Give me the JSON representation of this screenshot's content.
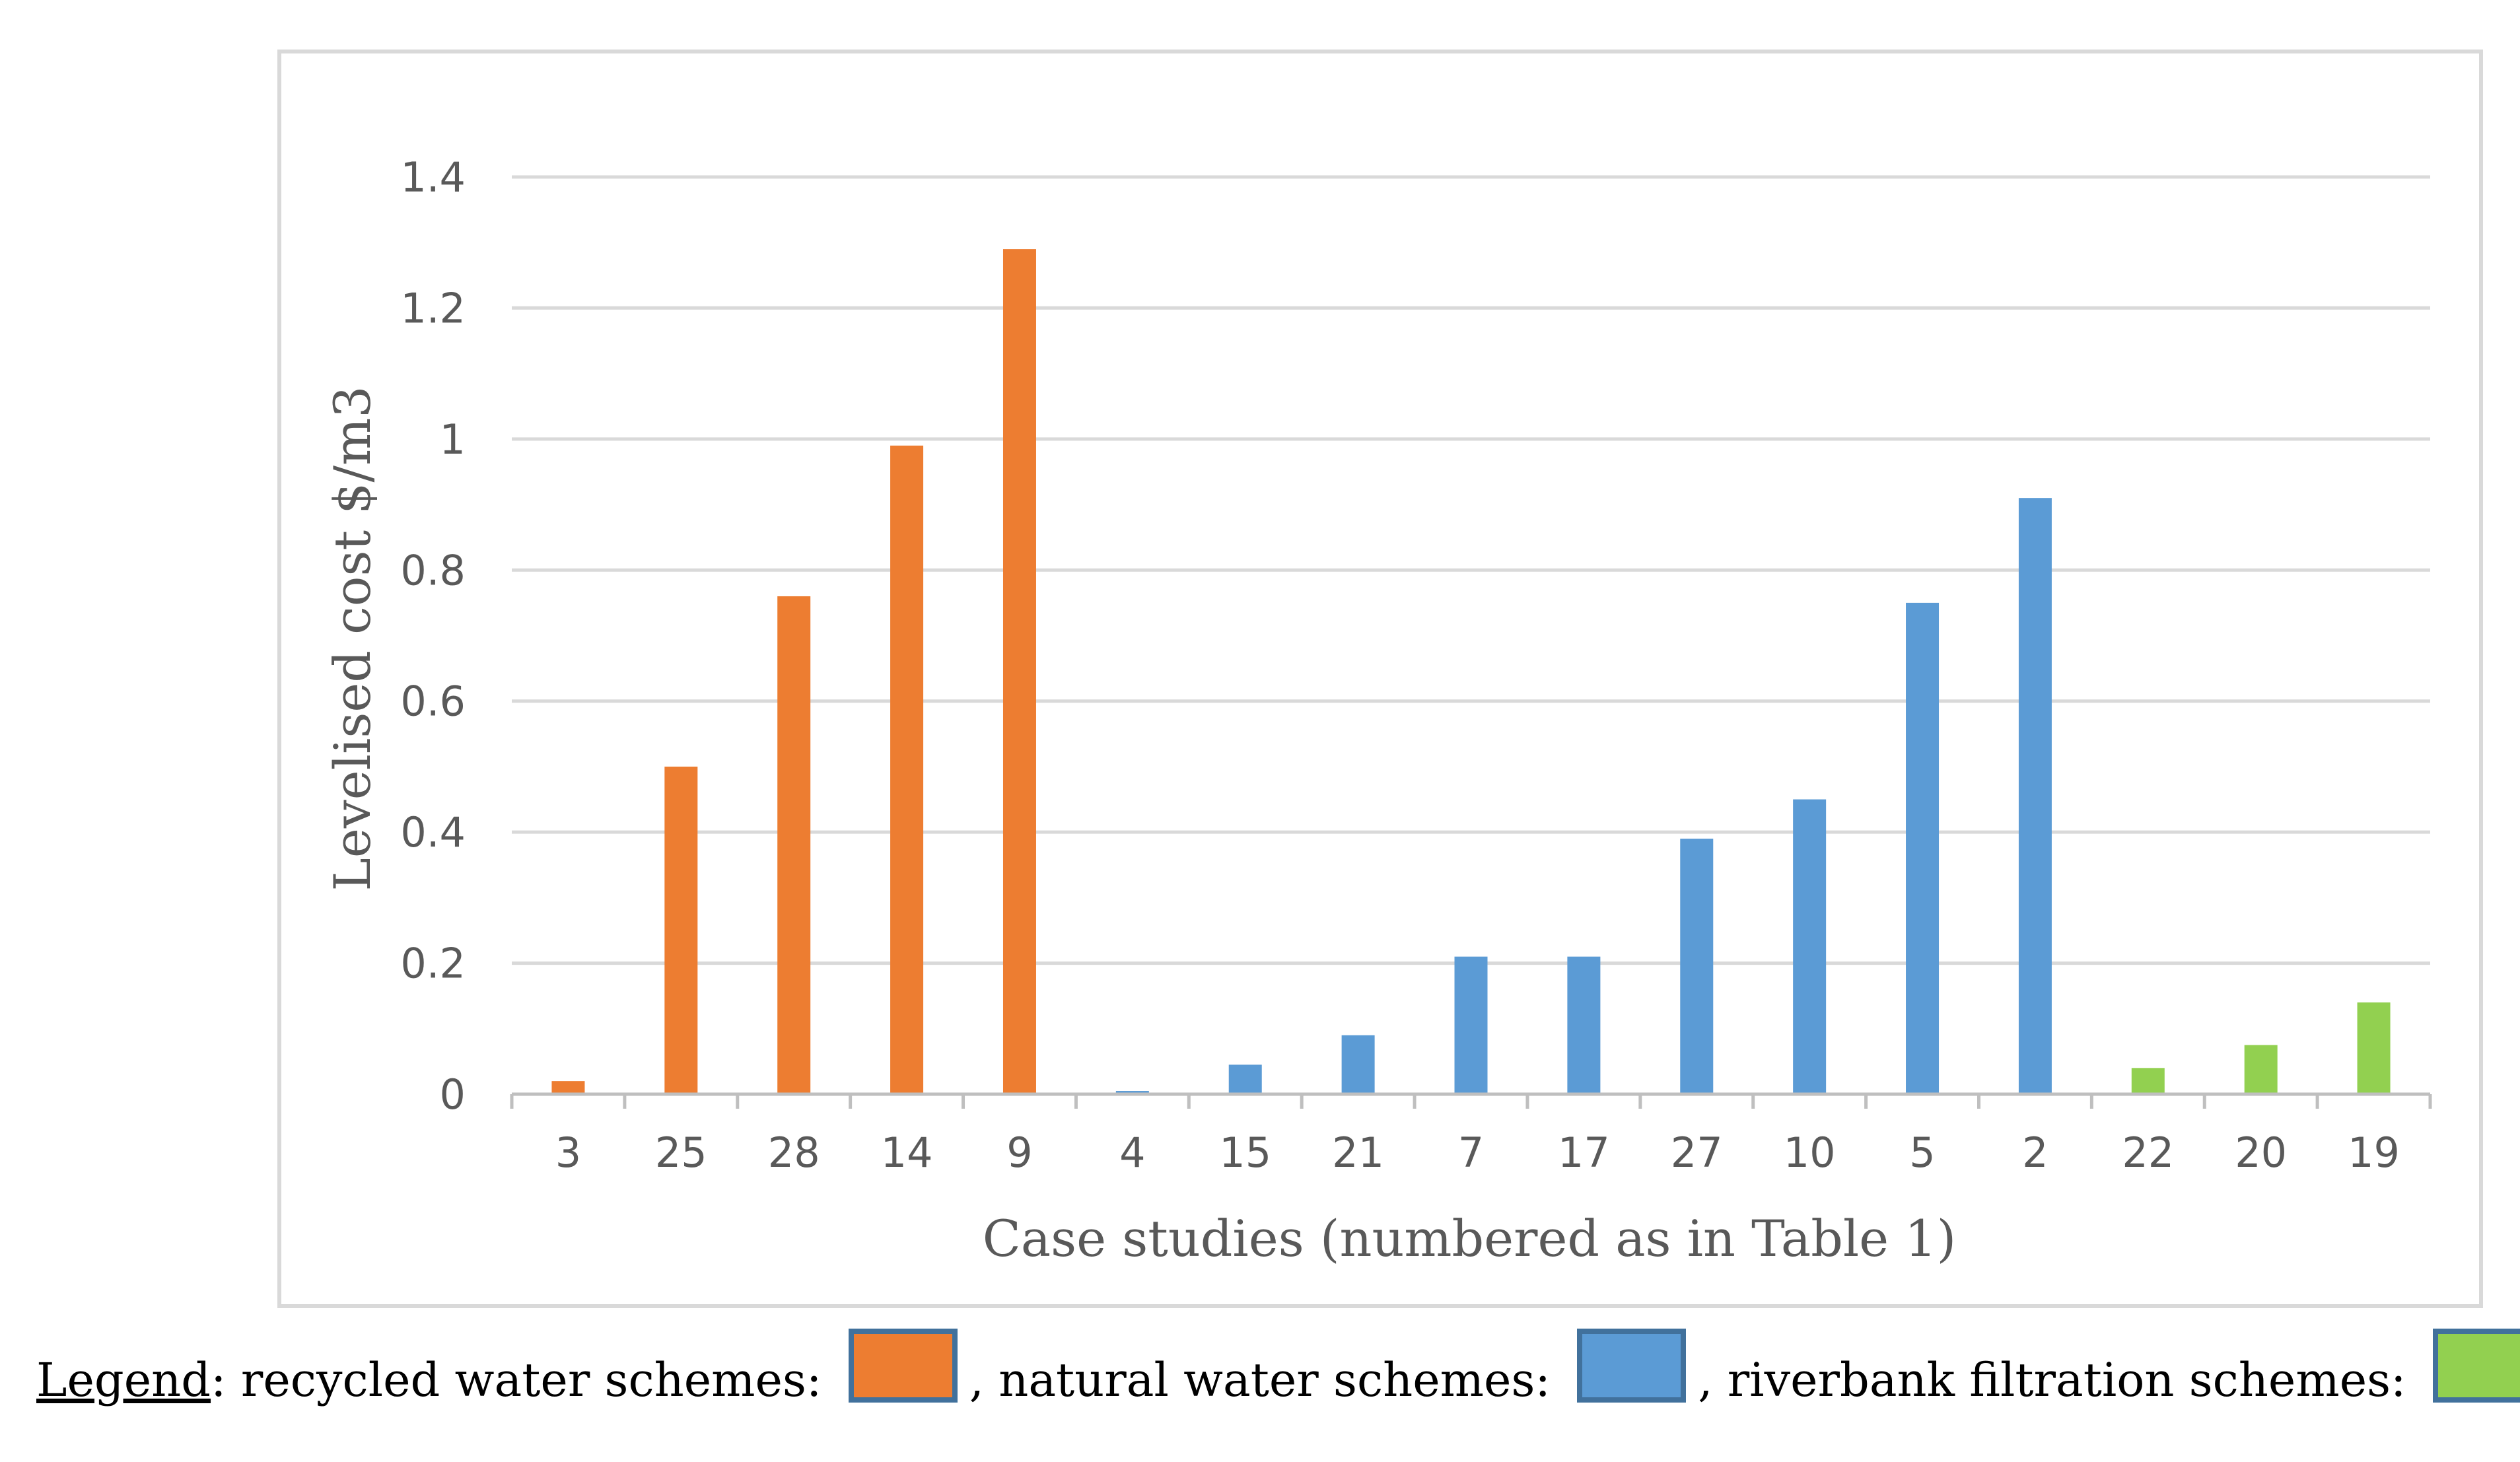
{
  "chart_data": {
    "type": "bar",
    "title": "",
    "xlabel": "Case studies (numbered as in Table 1)",
    "ylabel": "Levelised cost $/m3",
    "ylim": [
      0,
      1.4
    ],
    "yticks": [
      "0",
      "0.2",
      "0.4",
      "0.6",
      "0.8",
      "1",
      "1.2",
      "1.4"
    ],
    "ytick_values": [
      0,
      0.2,
      0.4,
      0.6,
      0.8,
      1.0,
      1.2,
      1.4
    ],
    "grid": true,
    "categories": [
      "3",
      "25",
      "28",
      "14",
      "9",
      "4",
      "15",
      "21",
      "7",
      "17",
      "27",
      "10",
      "5",
      "2",
      "22",
      "20",
      "19"
    ],
    "values": [
      0.02,
      0.5,
      0.76,
      0.99,
      1.29,
      0.005,
      0.045,
      0.09,
      0.21,
      0.21,
      0.39,
      0.45,
      0.75,
      0.91,
      0.04,
      0.075,
      0.14
    ],
    "groups": [
      "recycled",
      "recycled",
      "recycled",
      "recycled",
      "recycled",
      "natural",
      "natural",
      "natural",
      "natural",
      "natural",
      "natural",
      "natural",
      "natural",
      "natural",
      "riverbank",
      "riverbank",
      "riverbank"
    ],
    "group_colors": {
      "recycled": "#ed7d31",
      "natural": "#5b9bd5",
      "riverbank": "#92d050"
    }
  },
  "legend": {
    "label": "Legend",
    "separator": ": ",
    "recycled_label": "recycled water schemes: ",
    "natural_label": ", natural water schemes: ",
    "riverbank_label": ", riverbank filtration schemes: ",
    "end": "."
  },
  "colors": {
    "grid": "#d9d9d9",
    "axis": "#bfbfbf",
    "text": "#595959",
    "swatch_border": "#41719c"
  }
}
